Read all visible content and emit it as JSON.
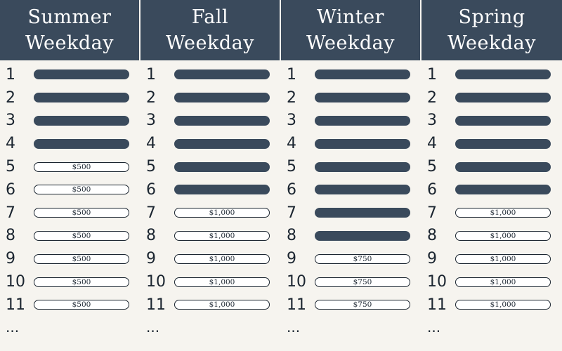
{
  "seasons": [
    {
      "title_line1": "Summer",
      "title_line2": "Weekday",
      "slots": [
        {
          "num": "1",
          "price": ""
        },
        {
          "num": "2",
          "price": ""
        },
        {
          "num": "3",
          "price": ""
        },
        {
          "num": "4",
          "price": ""
        },
        {
          "num": "5",
          "price": "$500"
        },
        {
          "num": "6",
          "price": "$500"
        },
        {
          "num": "7",
          "price": "$500"
        },
        {
          "num": "8",
          "price": "$500"
        },
        {
          "num": "9",
          "price": "$500"
        },
        {
          "num": "10",
          "price": "$500"
        },
        {
          "num": "11",
          "price": "$500"
        }
      ],
      "more": "..."
    },
    {
      "title_line1": "Fall",
      "title_line2": "Weekday",
      "slots": [
        {
          "num": "1",
          "price": ""
        },
        {
          "num": "2",
          "price": ""
        },
        {
          "num": "3",
          "price": ""
        },
        {
          "num": "4",
          "price": ""
        },
        {
          "num": "5",
          "price": ""
        },
        {
          "num": "6",
          "price": ""
        },
        {
          "num": "7",
          "price": "$1,000"
        },
        {
          "num": "8",
          "price": "$1,000"
        },
        {
          "num": "9",
          "price": "$1,000"
        },
        {
          "num": "10",
          "price": "$1,000"
        },
        {
          "num": "11",
          "price": "$1,000"
        }
      ],
      "more": "..."
    },
    {
      "title_line1": "Winter",
      "title_line2": "Weekday",
      "slots": [
        {
          "num": "1",
          "price": ""
        },
        {
          "num": "2",
          "price": ""
        },
        {
          "num": "3",
          "price": ""
        },
        {
          "num": "4",
          "price": ""
        },
        {
          "num": "5",
          "price": ""
        },
        {
          "num": "6",
          "price": ""
        },
        {
          "num": "7",
          "price": ""
        },
        {
          "num": "8",
          "price": ""
        },
        {
          "num": "9",
          "price": "$750"
        },
        {
          "num": "10",
          "price": "$750"
        },
        {
          "num": "11",
          "price": "$750"
        }
      ],
      "more": "..."
    },
    {
      "title_line1": "Spring",
      "title_line2": "Weekday",
      "slots": [
        {
          "num": "1",
          "price": ""
        },
        {
          "num": "2",
          "price": ""
        },
        {
          "num": "3",
          "price": ""
        },
        {
          "num": "4",
          "price": ""
        },
        {
          "num": "5",
          "price": ""
        },
        {
          "num": "6",
          "price": ""
        },
        {
          "num": "7",
          "price": "$1,000"
        },
        {
          "num": "8",
          "price": "$1,000"
        },
        {
          "num": "9",
          "price": "$1,000"
        },
        {
          "num": "10",
          "price": "$1,000"
        },
        {
          "num": "11",
          "price": "$1,000"
        }
      ],
      "more": "..."
    }
  ],
  "colors": {
    "header_bg": "#3a4a5c",
    "booked_fill": "#3a4a5c",
    "page_bg": "#f6f4ef"
  }
}
